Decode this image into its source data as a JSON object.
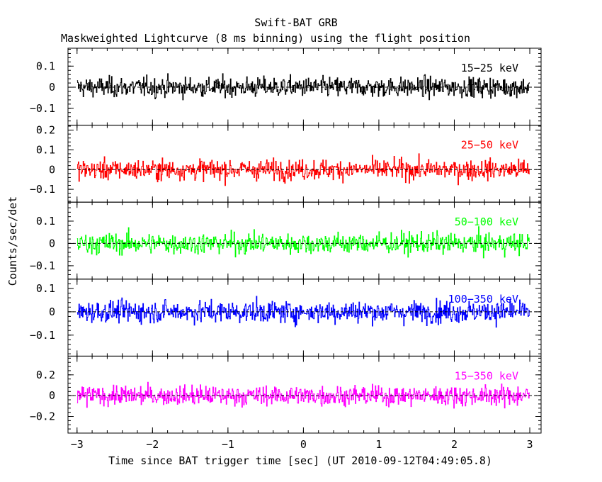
{
  "title": "Swift-BAT GRB",
  "subtitle": "Maskweighted Lightcurve (8 ms binning) using the flight position",
  "ylabel": "Counts/sec/det",
  "chart_data": {
    "type": "line",
    "xlabel": "Time since BAT trigger time [sec] (UT 2010-09-12T04:49:05.8)",
    "xlim": [
      -3.12,
      3.15
    ],
    "xticks": [
      -3,
      -2,
      -1,
      0,
      1,
      2,
      3
    ],
    "xtick_labels": [
      "−3",
      "−2",
      "−1",
      "0",
      "1",
      "2",
      "3"
    ],
    "data_x_range": [
      -3.0,
      3.0
    ],
    "bin_seconds": 0.008,
    "panels": [
      {
        "name": "15-25 keV",
        "label": "15−25 keV",
        "color": "#000000",
        "ylim": [
          -0.18,
          0.185
        ],
        "yticks": [
          -0.1,
          0,
          0.1
        ],
        "ytick_labels": [
          "−0.1",
          "0",
          "0.1"
        ],
        "noise_sigma": 0.055,
        "label_pos": "top-right"
      },
      {
        "name": "25-50 keV",
        "label": "25−50 keV",
        "color": "#ff0000",
        "ylim": [
          -0.165,
          0.225
        ],
        "yticks": [
          -0.1,
          0,
          0.1,
          0.2
        ],
        "ytick_labels": [
          "−0.1",
          "0",
          "0.1",
          "0.2"
        ],
        "noise_sigma": 0.06,
        "label_pos": "top-right"
      },
      {
        "name": "50-100 keV",
        "label": "50−100 keV",
        "color": "#00ff00",
        "ylim": [
          -0.16,
          0.185
        ],
        "yticks": [
          -0.1,
          0,
          0.1
        ],
        "ytick_labels": [
          "−0.1",
          "0",
          "0.1"
        ],
        "noise_sigma": 0.055,
        "label_pos": "top-right"
      },
      {
        "name": "100-350 keV",
        "label": "100−350 keV",
        "color": "#0000ff",
        "ylim": [
          -0.19,
          0.14
        ],
        "yticks": [
          -0.1,
          0,
          0.1
        ],
        "ytick_labels": [
          "−0.1",
          "0",
          "0.1"
        ],
        "noise_sigma": 0.055,
        "label_pos": "top-right"
      },
      {
        "name": "15-350 keV",
        "label": "15−350 keV",
        "color": "#ff00ff",
        "ylim": [
          -0.36,
          0.38
        ],
        "yticks": [
          -0.2,
          0,
          0.2
        ],
        "ytick_labels": [
          "−0.2",
          "0",
          "0.2"
        ],
        "noise_sigma": 0.11,
        "label_pos": "top-right"
      }
    ]
  }
}
